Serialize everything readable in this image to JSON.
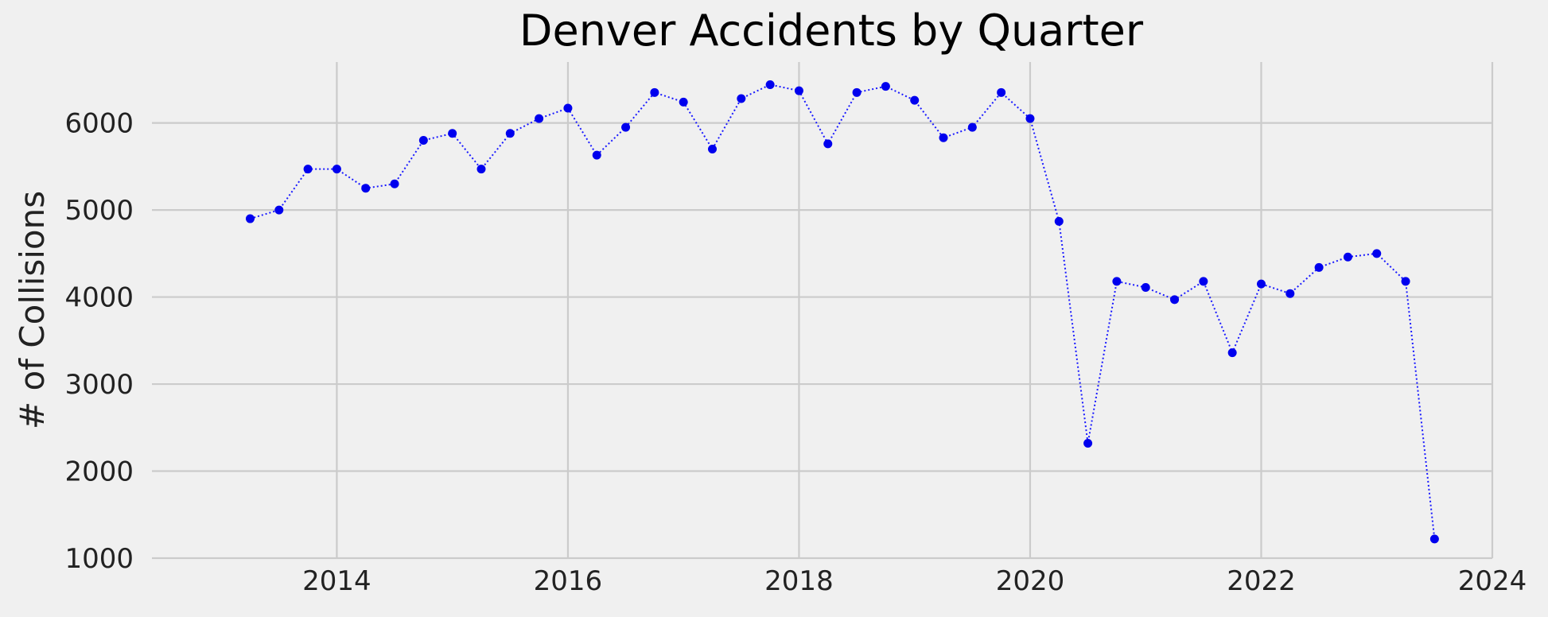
{
  "chart_data": {
    "type": "line",
    "title": "Denver Accidents by Quarter",
    "xlabel": "",
    "ylabel": "# of Collisions",
    "xlim": [
      2012.4,
      2024
    ],
    "ylim": [
      1000,
      6700
    ],
    "xticks": [
      2014,
      2016,
      2018,
      2020,
      2022,
      2024
    ],
    "yticks": [
      1000,
      2000,
      3000,
      4000,
      5000,
      6000
    ],
    "grid": true,
    "legend": "none",
    "marker": "circle",
    "line_style": "dotted",
    "colors": {
      "series": "#0000ee",
      "background": "#f0f0f0",
      "grid": "#cbcbcb"
    },
    "series": [
      {
        "x": [
          "2013-04-01",
          "2013-07-01",
          "2013-10-01",
          "2014-01-01",
          "2014-04-01",
          "2014-07-01",
          "2014-10-01",
          "2015-01-01",
          "2015-04-01",
          "2015-07-01",
          "2015-10-01",
          "2016-01-01",
          "2016-04-01",
          "2016-07-01",
          "2016-10-01",
          "2017-01-01",
          "2017-04-01",
          "2017-07-01",
          "2017-10-01",
          "2018-01-01",
          "2018-04-01",
          "2018-07-01",
          "2018-10-01",
          "2019-01-01",
          "2019-04-01",
          "2019-07-01",
          "2019-10-01",
          "2020-01-01",
          "2020-04-01",
          "2020-07-01",
          "2020-10-01",
          "2021-01-01",
          "2021-04-01",
          "2021-07-01",
          "2021-10-01",
          "2022-01-01",
          "2022-04-01",
          "2022-07-01",
          "2022-10-01",
          "2023-01-01",
          "2023-04-01",
          "2023-07-01"
        ],
        "y": [
          4900,
          5000,
          5470,
          5470,
          5250,
          5300,
          5800,
          5880,
          5470,
          5880,
          6050,
          6170,
          5630,
          5950,
          6350,
          6240,
          5700,
          6280,
          6440,
          6370,
          5760,
          6350,
          6420,
          6260,
          5830,
          5950,
          6350,
          6050,
          4870,
          2320,
          4180,
          4110,
          3970,
          4180,
          3360,
          4150,
          4040,
          4340,
          4460,
          4500,
          4180,
          1220
        ]
      }
    ]
  }
}
